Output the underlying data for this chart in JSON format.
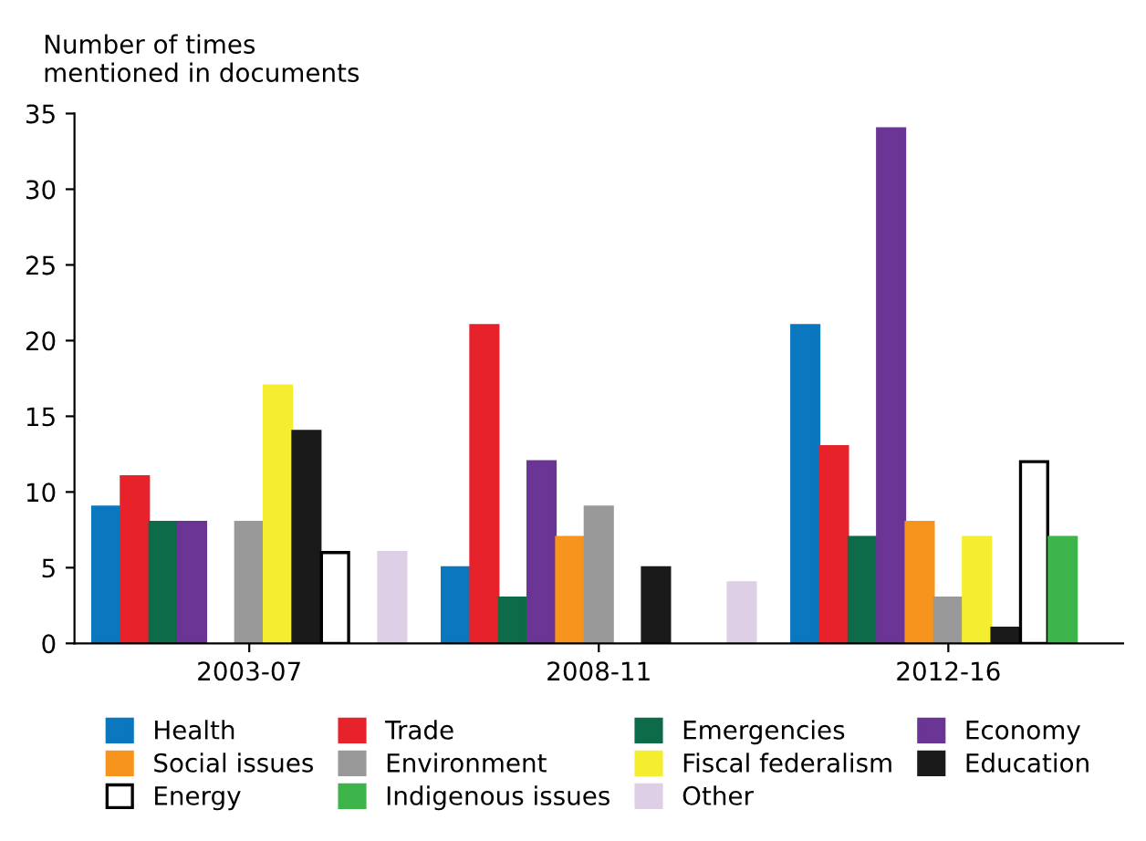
{
  "chart_data": {
    "type": "bar",
    "ylabel": "Number of times\nmentioned in documents",
    "categories": [
      "2003-07",
      "2008-11",
      "2012-16"
    ],
    "series": [
      {
        "name": "Health",
        "color": "#0a77bf",
        "values": [
          9,
          5,
          21
        ]
      },
      {
        "name": "Trade",
        "color": "#e8222a",
        "values": [
          11,
          21,
          13
        ]
      },
      {
        "name": "Emergencies",
        "color": "#0d6b4a",
        "values": [
          8,
          3,
          7
        ]
      },
      {
        "name": "Economy",
        "color": "#6a3594",
        "values": [
          8,
          12,
          34
        ]
      },
      {
        "name": "Social issues",
        "color": "#f7941d",
        "values": [
          null,
          7,
          8
        ]
      },
      {
        "name": "Environment",
        "color": "#999999",
        "values": [
          8,
          9,
          3
        ]
      },
      {
        "name": "Fiscal federalism",
        "color": "#f5ee30",
        "values": [
          17,
          null,
          7
        ]
      },
      {
        "name": "Education",
        "color": "#1a1a1a",
        "values": [
          14,
          5,
          1
        ]
      },
      {
        "name": "Energy",
        "color": "#ffffff",
        "values": [
          6,
          null,
          12
        ]
      },
      {
        "name": "Indigenous issues",
        "color": "#3db54a",
        "values": [
          null,
          null,
          7
        ]
      },
      {
        "name": "Other",
        "color": "#ddd0e6",
        "values": [
          6,
          4,
          null
        ]
      }
    ],
    "ylim": [
      0,
      35
    ],
    "yticks": [
      0,
      5,
      10,
      15,
      20,
      25,
      30,
      35
    ],
    "grid": false,
    "legend": "bottom"
  }
}
